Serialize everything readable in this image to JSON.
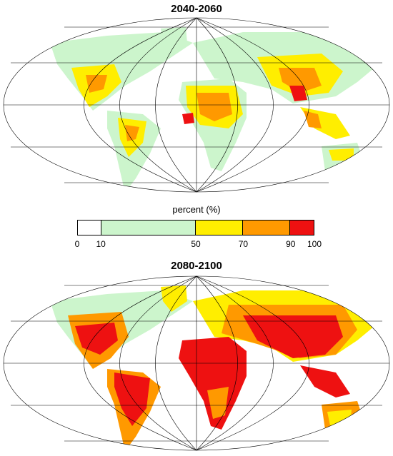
{
  "maps": [
    {
      "title": "2040-2060"
    },
    {
      "title": "2080-2100"
    }
  ],
  "legend": {
    "title": "percent (%)",
    "tick_labels": [
      "0",
      "10",
      "50",
      "70",
      "90",
      "100"
    ],
    "bins": [
      {
        "min": 0,
        "max": 10,
        "color": "#ffffff"
      },
      {
        "min": 10,
        "max": 50,
        "color": "#ccf5cc"
      },
      {
        "min": 50,
        "max": 70,
        "color": "#ffee00"
      },
      {
        "min": 70,
        "max": 90,
        "color": "#ff9900"
      },
      {
        "min": 90,
        "max": 100,
        "color": "#ee1111"
      }
    ]
  },
  "colors": {
    "ocean": "#ffffff",
    "graticule": "#000000",
    "coastline": "#555555"
  }
}
